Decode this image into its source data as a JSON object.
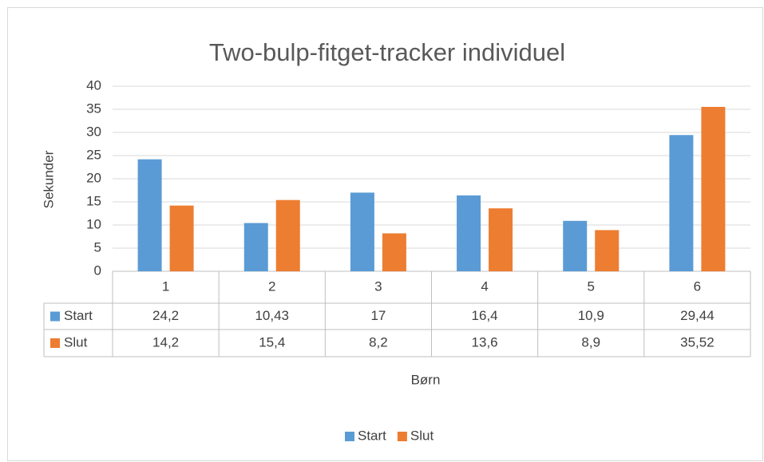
{
  "chart_data": {
    "type": "bar",
    "title": "Two-bulp-fitget-tracker individuel",
    "y_label": "Sekunder",
    "x_label": "Børn",
    "categories": [
      "1",
      "2",
      "3",
      "4",
      "5",
      "6"
    ],
    "series": [
      {
        "name": "Start",
        "color": "#5b9bd5",
        "values": [
          24.2,
          10.43,
          17,
          16.4,
          10.9,
          29.44
        ],
        "value_labels": [
          "24,2",
          "10,43",
          "17",
          "16,4",
          "10,9",
          "29,44"
        ]
      },
      {
        "name": "Slut",
        "color": "#ed7d31",
        "values": [
          14.2,
          15.4,
          8.2,
          13.6,
          8.9,
          35.52
        ],
        "value_labels": [
          "14,2",
          "15,4",
          "8,2",
          "13,6",
          "8,9",
          "35,52"
        ]
      }
    ],
    "ylim": [
      0,
      40
    ],
    "yticks": [
      0,
      5,
      10,
      15,
      20,
      25,
      30,
      35,
      40
    ],
    "grid": true,
    "legend": "bottom"
  }
}
